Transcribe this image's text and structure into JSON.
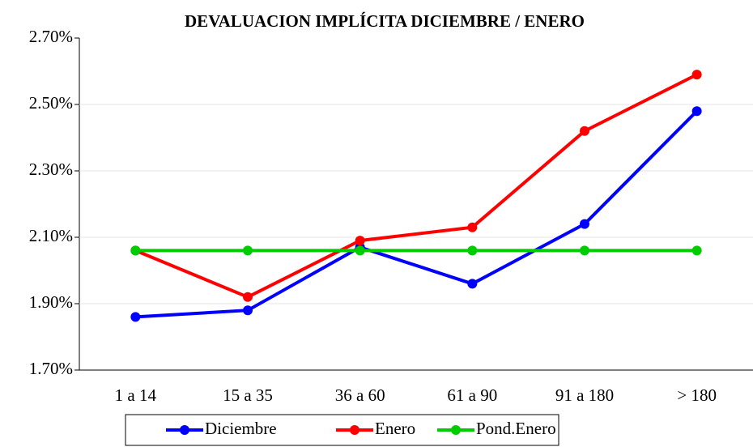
{
  "chart_data": {
    "type": "line",
    "title": "DEVALUACION  IMPLÍCITA DICIEMBRE / ENERO",
    "categories": [
      "1 a 14",
      "15 a 35",
      "36 a 60",
      "61 a 90",
      "91 a 180",
      "> 180"
    ],
    "series": [
      {
        "name": "Diciembre",
        "color": "#0000ff",
        "values": [
          1.86,
          1.88,
          2.07,
          1.96,
          2.14,
          2.48
        ]
      },
      {
        "name": "Enero",
        "color": "#ff0000",
        "values": [
          2.06,
          1.92,
          2.09,
          2.13,
          2.42,
          2.59
        ]
      },
      {
        "name": "Pond.Enero",
        "color": "#00cc00",
        "values": [
          2.06,
          2.06,
          2.06,
          2.06,
          2.06,
          2.06
        ]
      }
    ],
    "ylim": [
      1.7,
      2.7
    ],
    "yticks": [
      {
        "value": 1.7,
        "label": "1.70%"
      },
      {
        "value": 1.9,
        "label": "1.90%"
      },
      {
        "value": 2.1,
        "label": "2.10%"
      },
      {
        "value": 2.3,
        "label": "2.30%"
      },
      {
        "value": 2.5,
        "label": "2.50%"
      },
      {
        "value": 2.7,
        "label": "2.70%"
      }
    ],
    "grid": true,
    "legend": "bottom"
  }
}
